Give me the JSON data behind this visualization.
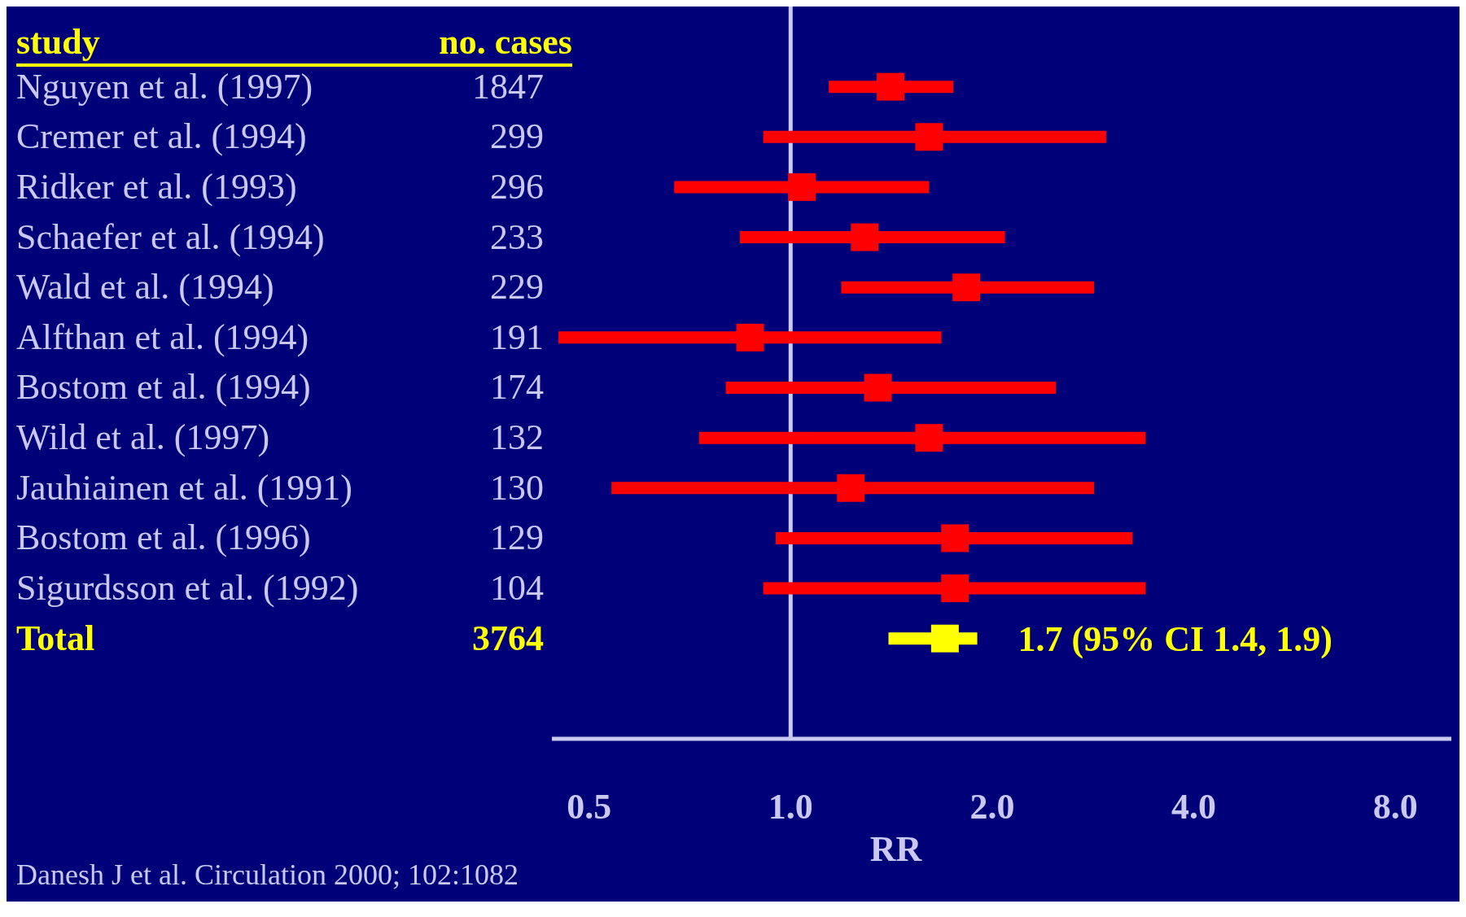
{
  "chart_data": {
    "type": "scatter",
    "orientation": "horizontal",
    "ylabel": "study",
    "y2label": "no. cases",
    "xlabel": "RR",
    "categories": [
      "Nguyen et al. (1997)",
      "Cremer et al. (1994)",
      "Ridker et al. (1993)",
      "Schaefer et al. (1994)",
      "Wald et al. (1994)",
      "Alfthan et al. (1994)",
      "Bostom et al. (1994)",
      "Wild et al. (1997)",
      "Jauhiainen et al. (1991)",
      "Bostom et al. (1996)",
      "Sigurdsson et al. (1992)",
      "Total"
    ],
    "y2_categories": [
      "1847",
      "299",
      "296",
      "233",
      "229",
      "191",
      "174",
      "132",
      "130",
      "129",
      "104",
      "3764"
    ],
    "values": [
      1.41,
      1.61,
      1.04,
      1.29,
      1.83,
      0.87,
      1.35,
      1.61,
      1.23,
      1.76,
      1.76,
      1.7
    ],
    "errors": [
      [
        1.14,
        1.75
      ],
      [
        0.91,
        2.96
      ],
      [
        0.67,
        1.61
      ],
      [
        0.84,
        2.09
      ],
      [
        1.19,
        2.84
      ],
      [
        0.45,
        1.68
      ],
      [
        0.8,
        2.49
      ],
      [
        0.73,
        3.39
      ],
      [
        0.54,
        2.84
      ],
      [
        0.95,
        3.24
      ],
      [
        0.91,
        3.39
      ],
      [
        1.4,
        1.9
      ]
    ],
    "colors": [
      "#ff0000",
      "#ff0000",
      "#ff0000",
      "#ff0000",
      "#ff0000",
      "#ff0000",
      "#ff0000",
      "#ff0000",
      "#ff0000",
      "#ff0000",
      "#ff0000",
      "#ffff00"
    ],
    "log": "x",
    "xlim": [
      0.44,
      9.7
    ],
    "xticks": [
      {
        "value": 0.5,
        "label": "0.5"
      },
      {
        "value": 1,
        "label": "1.0"
      },
      {
        "value": 2,
        "label": "2.0"
      },
      {
        "value": 4,
        "label": "4.0"
      },
      {
        "value": 8,
        "label": "8.0"
      }
    ],
    "ref_lines": [
      {
        "axis": "x",
        "value": 1,
        "color": "#c8c8f0"
      }
    ],
    "marker": "square",
    "grid": false,
    "legend": false,
    "annotations": [
      {
        "text": "1.7 (95% CI 1.4, 1.9)",
        "x": 1.9,
        "y": "Total"
      },
      "Danesh J et al. Circulation 2000; 102:1082"
    ]
  }
}
